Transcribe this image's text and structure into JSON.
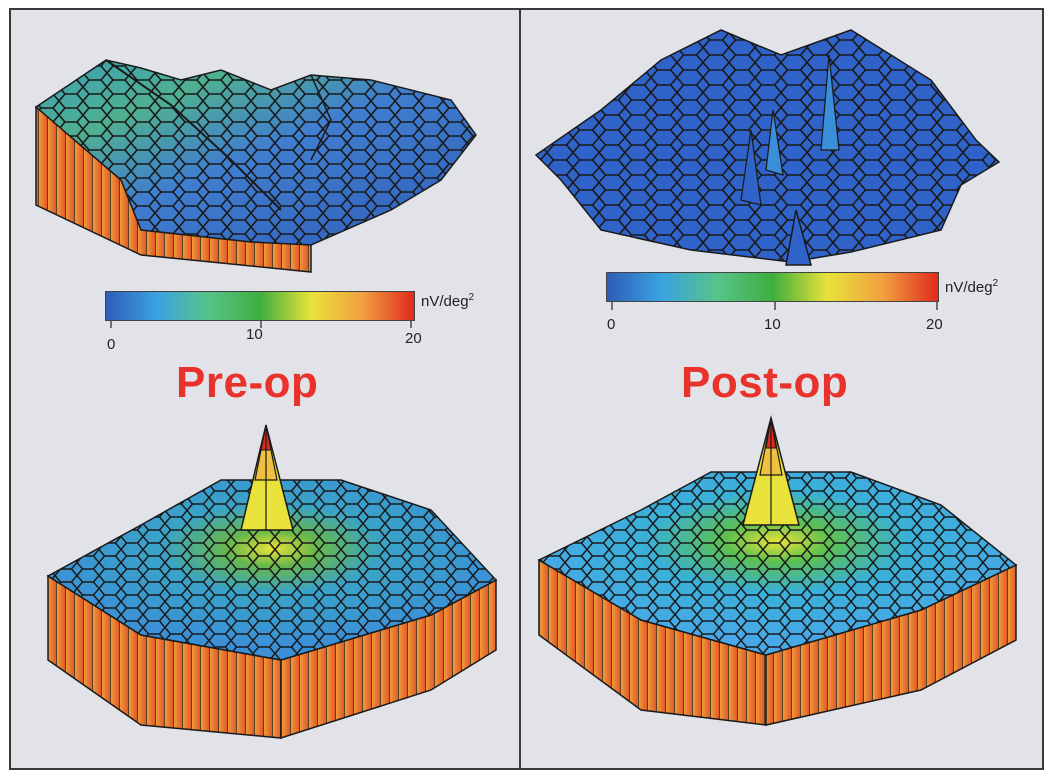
{
  "panels": [
    {
      "title": "Pre-op",
      "colorbar": {
        "unit": "nV/deg",
        "unit_exponent": "2",
        "ticks": [
          "0",
          "10",
          "20"
        ]
      }
    },
    {
      "title": "Post-op",
      "colorbar": {
        "unit": "nV/deg",
        "unit_exponent": "2",
        "ticks": [
          "0",
          "10",
          "20"
        ]
      }
    }
  ],
  "colors": {
    "title": "#e8322b",
    "colorscale": [
      "#2f5cb8",
      "#3aa3e0",
      "#56c48a",
      "#3fae3e",
      "#e9e23a",
      "#f0a040",
      "#e02a1c"
    ],
    "bar_side": "#f2a23c",
    "bar_side_dark": "#e0542a"
  }
}
